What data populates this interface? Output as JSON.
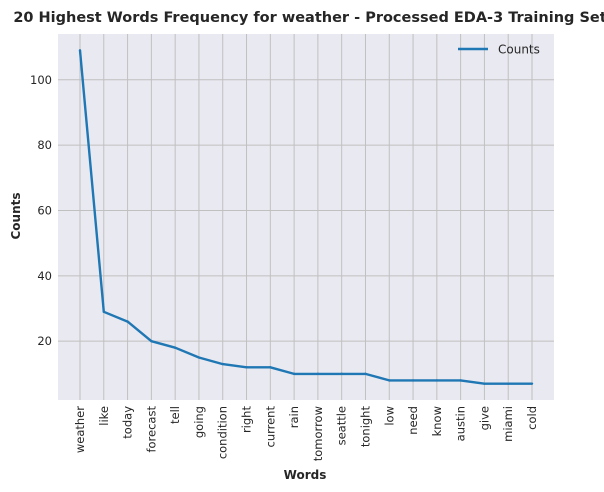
{
  "chart_data": {
    "type": "line",
    "title": "20 Highest Words Frequency for weather - Processed EDA-3 Training Set",
    "xlabel": "Words",
    "ylabel": "Counts",
    "categories": [
      "weather",
      "like",
      "today",
      "forecast",
      "tell",
      "going",
      "condition",
      "right",
      "current",
      "rain",
      "tomorrow",
      "seattle",
      "tonight",
      "low",
      "need",
      "know",
      "austin",
      "give",
      "miami",
      "cold"
    ],
    "series": [
      {
        "name": "Counts",
        "values": [
          109,
          29,
          26,
          20,
          18,
          15,
          13,
          12,
          12,
          10,
          10,
          10,
          10,
          8,
          8,
          8,
          8,
          7,
          7,
          7
        ]
      }
    ],
    "ylim": [
      2.0,
      114.0
    ],
    "yticks": [
      20,
      40,
      60,
      80,
      100
    ],
    "grid": true,
    "legend": "top-right",
    "colors": {
      "line": "#1f77b4",
      "plot_bg": "#e9e9f1",
      "grid": "#c0c0c0"
    }
  }
}
